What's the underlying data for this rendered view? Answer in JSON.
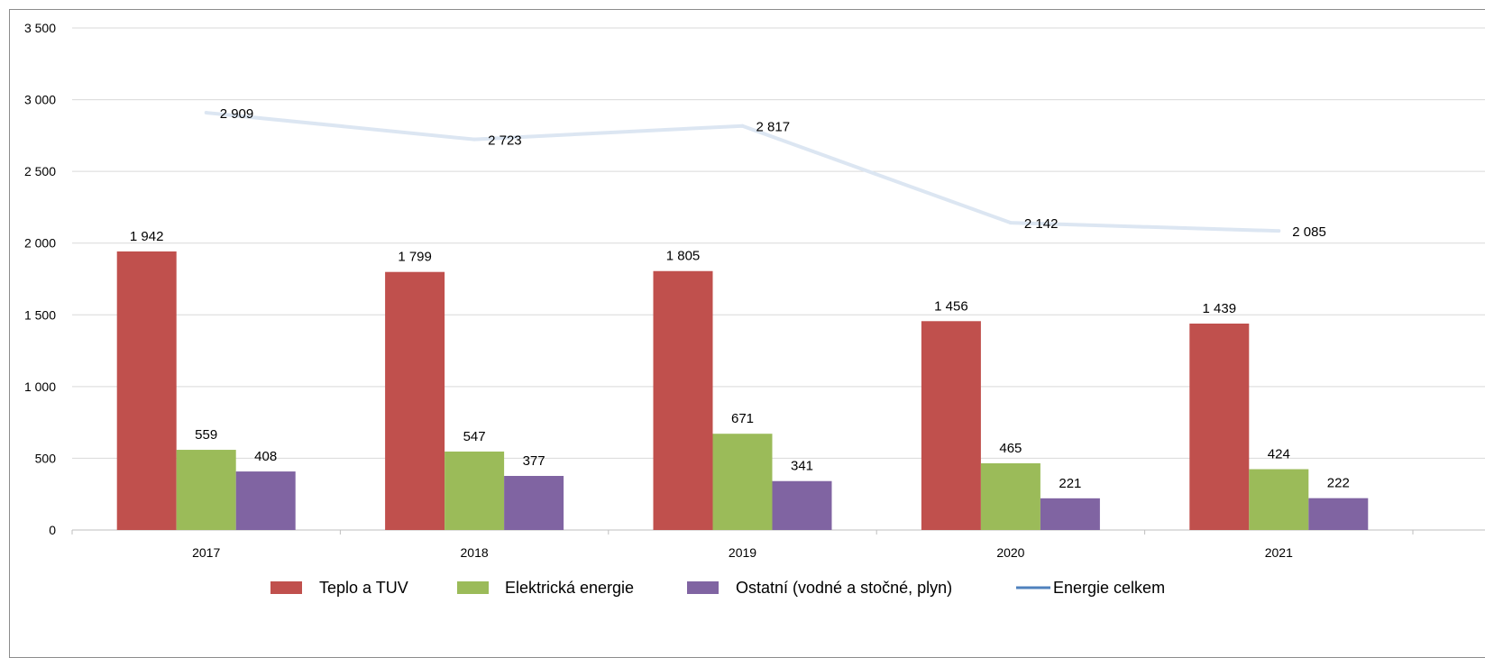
{
  "chart_data": {
    "type": "bar",
    "categories": [
      "2017",
      "2018",
      "2019",
      "2020",
      "2021"
    ],
    "series": [
      {
        "name": "Teplo a TUV",
        "kind": "bar",
        "color": "#c0504d",
        "values": [
          1942,
          1799,
          1805,
          1456,
          1439
        ],
        "labels": [
          "1 942",
          "1 799",
          "1 805",
          "1 456",
          "1 439"
        ]
      },
      {
        "name": "Elektrická energie",
        "kind": "bar",
        "color": "#9bbb59",
        "values": [
          559,
          547,
          671,
          465,
          424
        ],
        "labels": [
          "559",
          "547",
          "671",
          "465",
          "424"
        ]
      },
      {
        "name": "Ostatní (vodné a stočné, plyn)",
        "kind": "bar",
        "color": "#8064a2",
        "values": [
          408,
          377,
          341,
          221,
          222
        ],
        "labels": [
          "408",
          "377",
          "341",
          "221",
          "222"
        ]
      },
      {
        "name": "Energie celkem",
        "kind": "line",
        "color": "#dce6f2",
        "legend_color": "#4f81bd",
        "values": [
          2909,
          2723,
          2817,
          2142,
          2085
        ],
        "labels": [
          "2 909",
          "2 723",
          "2 817",
          "2 142",
          "2 085"
        ]
      }
    ],
    "ylim": [
      0,
      3500
    ],
    "yticks": [
      0,
      500,
      1000,
      1500,
      2000,
      2500,
      3000,
      3500
    ],
    "ytick_labels": [
      "0",
      "500",
      "1 000",
      "1 500",
      "2 000",
      "2 500",
      "3 000",
      "3 500"
    ],
    "grid": true,
    "legend": "bottom",
    "title": "",
    "xlabel": "",
    "ylabel": ""
  }
}
